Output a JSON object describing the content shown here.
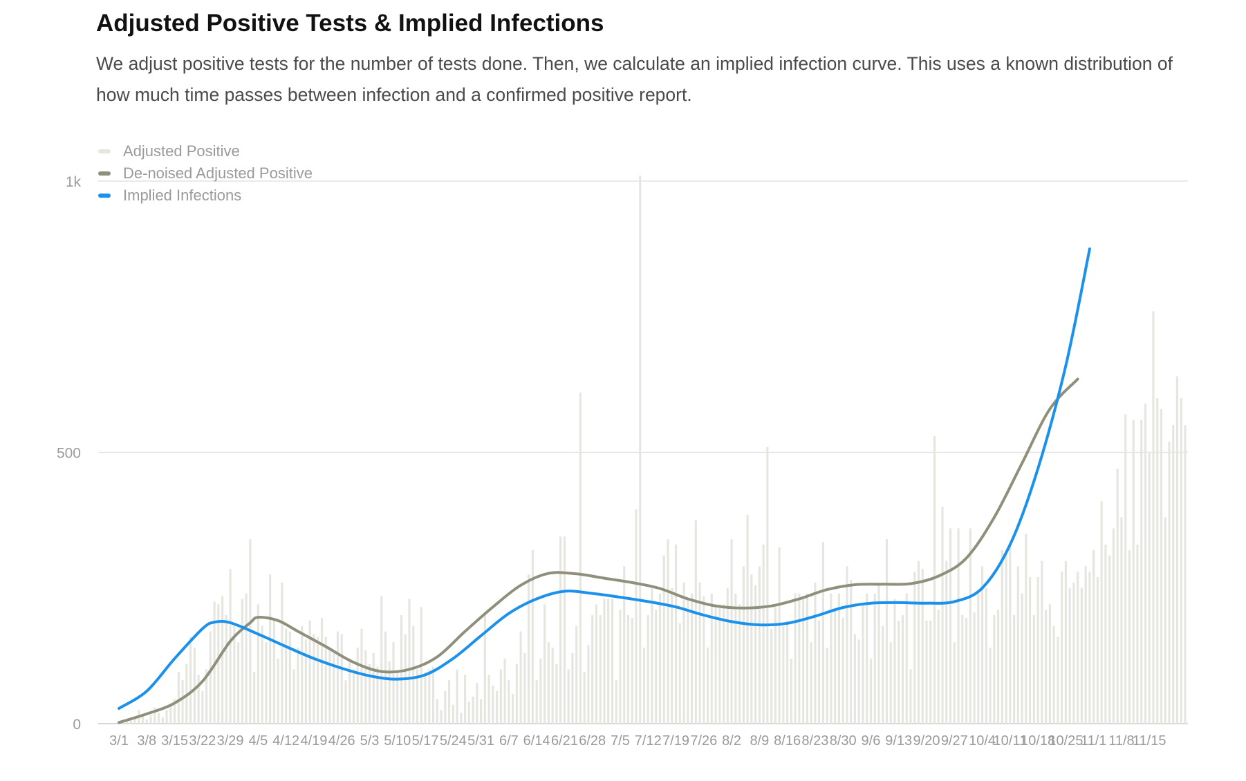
{
  "title": "Adjusted Positive Tests & Implied Infections",
  "subtitle": "We adjust positive tests for the number of tests done. Then, we calculate an implied infection curve. This uses a known distribution of how much time passes between infection and a confirmed positive report.",
  "colors": {
    "adjusted_positive": "#e6e6e1",
    "denoised": "#8f8f7b",
    "implied": "#1a91ea",
    "grid": "#e4e4e4",
    "axis": "#c8c8c8",
    "tick_text": "#9a9a9a"
  },
  "chart_data": {
    "type": "bar+line",
    "title": "Adjusted Positive Tests & Implied Infections",
    "xlabel": "",
    "ylabel": "",
    "ylim": [
      0,
      1000
    ],
    "y_ticks": [
      0,
      500,
      1000
    ],
    "y_tick_labels": [
      "0",
      "500",
      "1k"
    ],
    "grid": true,
    "legend_position": "top-left",
    "x_tick_labels": [
      "3/1",
      "3/8",
      "3/15",
      "3/22",
      "3/29",
      "4/5",
      "4/12",
      "4/19",
      "4/26",
      "5/3",
      "5/10",
      "5/17",
      "5/24",
      "5/31",
      "6/7",
      "6/14",
      "6/21",
      "6/28",
      "7/5",
      "7/12",
      "7/19",
      "7/26",
      "8/2",
      "8/9",
      "8/16",
      "8/23",
      "8/30",
      "9/6",
      "9/13",
      "9/20",
      "9/27",
      "10/4",
      "10/11",
      "10/18",
      "10/25",
      "11/1",
      "11/8",
      "11/15"
    ],
    "series": [
      {
        "name": "Adjusted Positive",
        "type": "bar",
        "values": [
          3,
          5,
          8,
          12,
          10,
          25,
          18,
          8,
          15,
          30,
          20,
          12,
          25,
          35,
          45,
          95,
          80,
          110,
          160,
          140,
          90,
          60,
          100,
          170,
          225,
          220,
          235,
          200,
          285,
          185,
          150,
          230,
          240,
          340,
          95,
          220,
          180,
          150,
          275,
          190,
          120,
          260,
          175,
          170,
          100,
          140,
          180,
          155,
          190,
          165,
          160,
          195,
          160,
          140,
          130,
          170,
          165,
          80,
          120,
          100,
          140,
          175,
          135,
          110,
          130,
          105,
          235,
          170,
          115,
          150,
          95,
          200,
          165,
          230,
          180,
          100,
          215,
          95,
          100,
          105,
          45,
          25,
          60,
          80,
          35,
          100,
          20,
          90,
          40,
          50,
          75,
          45,
          205,
          90,
          70,
          60,
          100,
          120,
          80,
          55,
          110,
          170,
          130,
          275,
          320,
          80,
          120,
          220,
          150,
          140,
          110,
          345,
          345,
          100,
          130,
          180,
          610,
          95,
          145,
          200,
          220,
          200,
          230,
          230,
          230,
          80,
          210,
          290,
          200,
          195,
          395,
          1010,
          140,
          200,
          250,
          210,
          240,
          310,
          340,
          250,
          330,
          185,
          260,
          230,
          240,
          375,
          260,
          235,
          140,
          240,
          220,
          220,
          220,
          250,
          340,
          240,
          220,
          290,
          385,
          275,
          255,
          290,
          330,
          510,
          175,
          215,
          325,
          180,
          190,
          120,
          240,
          240,
          230,
          240,
          150,
          260,
          190,
          335,
          140,
          240,
          210,
          240,
          195,
          290,
          265,
          165,
          155,
          220,
          240,
          120,
          240,
          260,
          180,
          340,
          150,
          230,
          190,
          200,
          240,
          100,
          280,
          300,
          285,
          190,
          190,
          530,
          210,
          400,
          300,
          360,
          150,
          360,
          200,
          195,
          360,
          205,
          240,
          290,
          250,
          140,
          200,
          210,
          320,
          310,
          330,
          200,
          290,
          240,
          350,
          270,
          200,
          270,
          300,
          210,
          220,
          180,
          160,
          280,
          300,
          250,
          260,
          280,
          250,
          290,
          280,
          320,
          270,
          410,
          330,
          310,
          360,
          470,
          380,
          570,
          320,
          560,
          330,
          560,
          590,
          500,
          760,
          600,
          580,
          380,
          520,
          550,
          640,
          600,
          550
        ]
      },
      {
        "name": "De-noised Adjusted Positive",
        "type": "line",
        "points": [
          [
            0,
            2
          ],
          [
            7,
            18
          ],
          [
            14,
            38
          ],
          [
            21,
            78
          ],
          [
            28,
            152
          ],
          [
            33,
            186
          ],
          [
            35,
            196
          ],
          [
            40,
            190
          ],
          [
            45,
            170
          ],
          [
            52,
            142
          ],
          [
            59,
            113
          ],
          [
            66,
            96
          ],
          [
            73,
            100
          ],
          [
            80,
            123
          ],
          [
            87,
            170
          ],
          [
            94,
            215
          ],
          [
            101,
            255
          ],
          [
            108,
            277
          ],
          [
            115,
            276
          ],
          [
            122,
            268
          ],
          [
            129,
            260
          ],
          [
            136,
            249
          ],
          [
            143,
            230
          ],
          [
            150,
            217
          ],
          [
            157,
            213
          ],
          [
            164,
            217
          ],
          [
            171,
            230
          ],
          [
            178,
            247
          ],
          [
            185,
            256
          ],
          [
            192,
            257
          ],
          [
            199,
            258
          ],
          [
            206,
            272
          ],
          [
            213,
            305
          ],
          [
            220,
            380
          ],
          [
            227,
            480
          ],
          [
            234,
            580
          ],
          [
            241,
            635
          ]
        ]
      },
      {
        "name": "Implied Infections",
        "type": "line",
        "points": [
          [
            0,
            28
          ],
          [
            7,
            60
          ],
          [
            14,
            120
          ],
          [
            21,
            175
          ],
          [
            24,
            187
          ],
          [
            28,
            186
          ],
          [
            35,
            165
          ],
          [
            42,
            142
          ],
          [
            49,
            120
          ],
          [
            56,
            102
          ],
          [
            63,
            88
          ],
          [
            70,
            82
          ],
          [
            77,
            90
          ],
          [
            84,
            120
          ],
          [
            91,
            162
          ],
          [
            98,
            203
          ],
          [
            105,
            230
          ],
          [
            112,
            244
          ],
          [
            119,
            240
          ],
          [
            126,
            233
          ],
          [
            133,
            225
          ],
          [
            140,
            215
          ],
          [
            147,
            200
          ],
          [
            154,
            188
          ],
          [
            161,
            182
          ],
          [
            168,
            185
          ],
          [
            175,
            198
          ],
          [
            182,
            214
          ],
          [
            189,
            222
          ],
          [
            196,
            223
          ],
          [
            203,
            222
          ],
          [
            210,
            225
          ],
          [
            217,
            250
          ],
          [
            224,
            330
          ],
          [
            231,
            470
          ],
          [
            238,
            660
          ],
          [
            244,
            875
          ]
        ]
      }
    ]
  }
}
